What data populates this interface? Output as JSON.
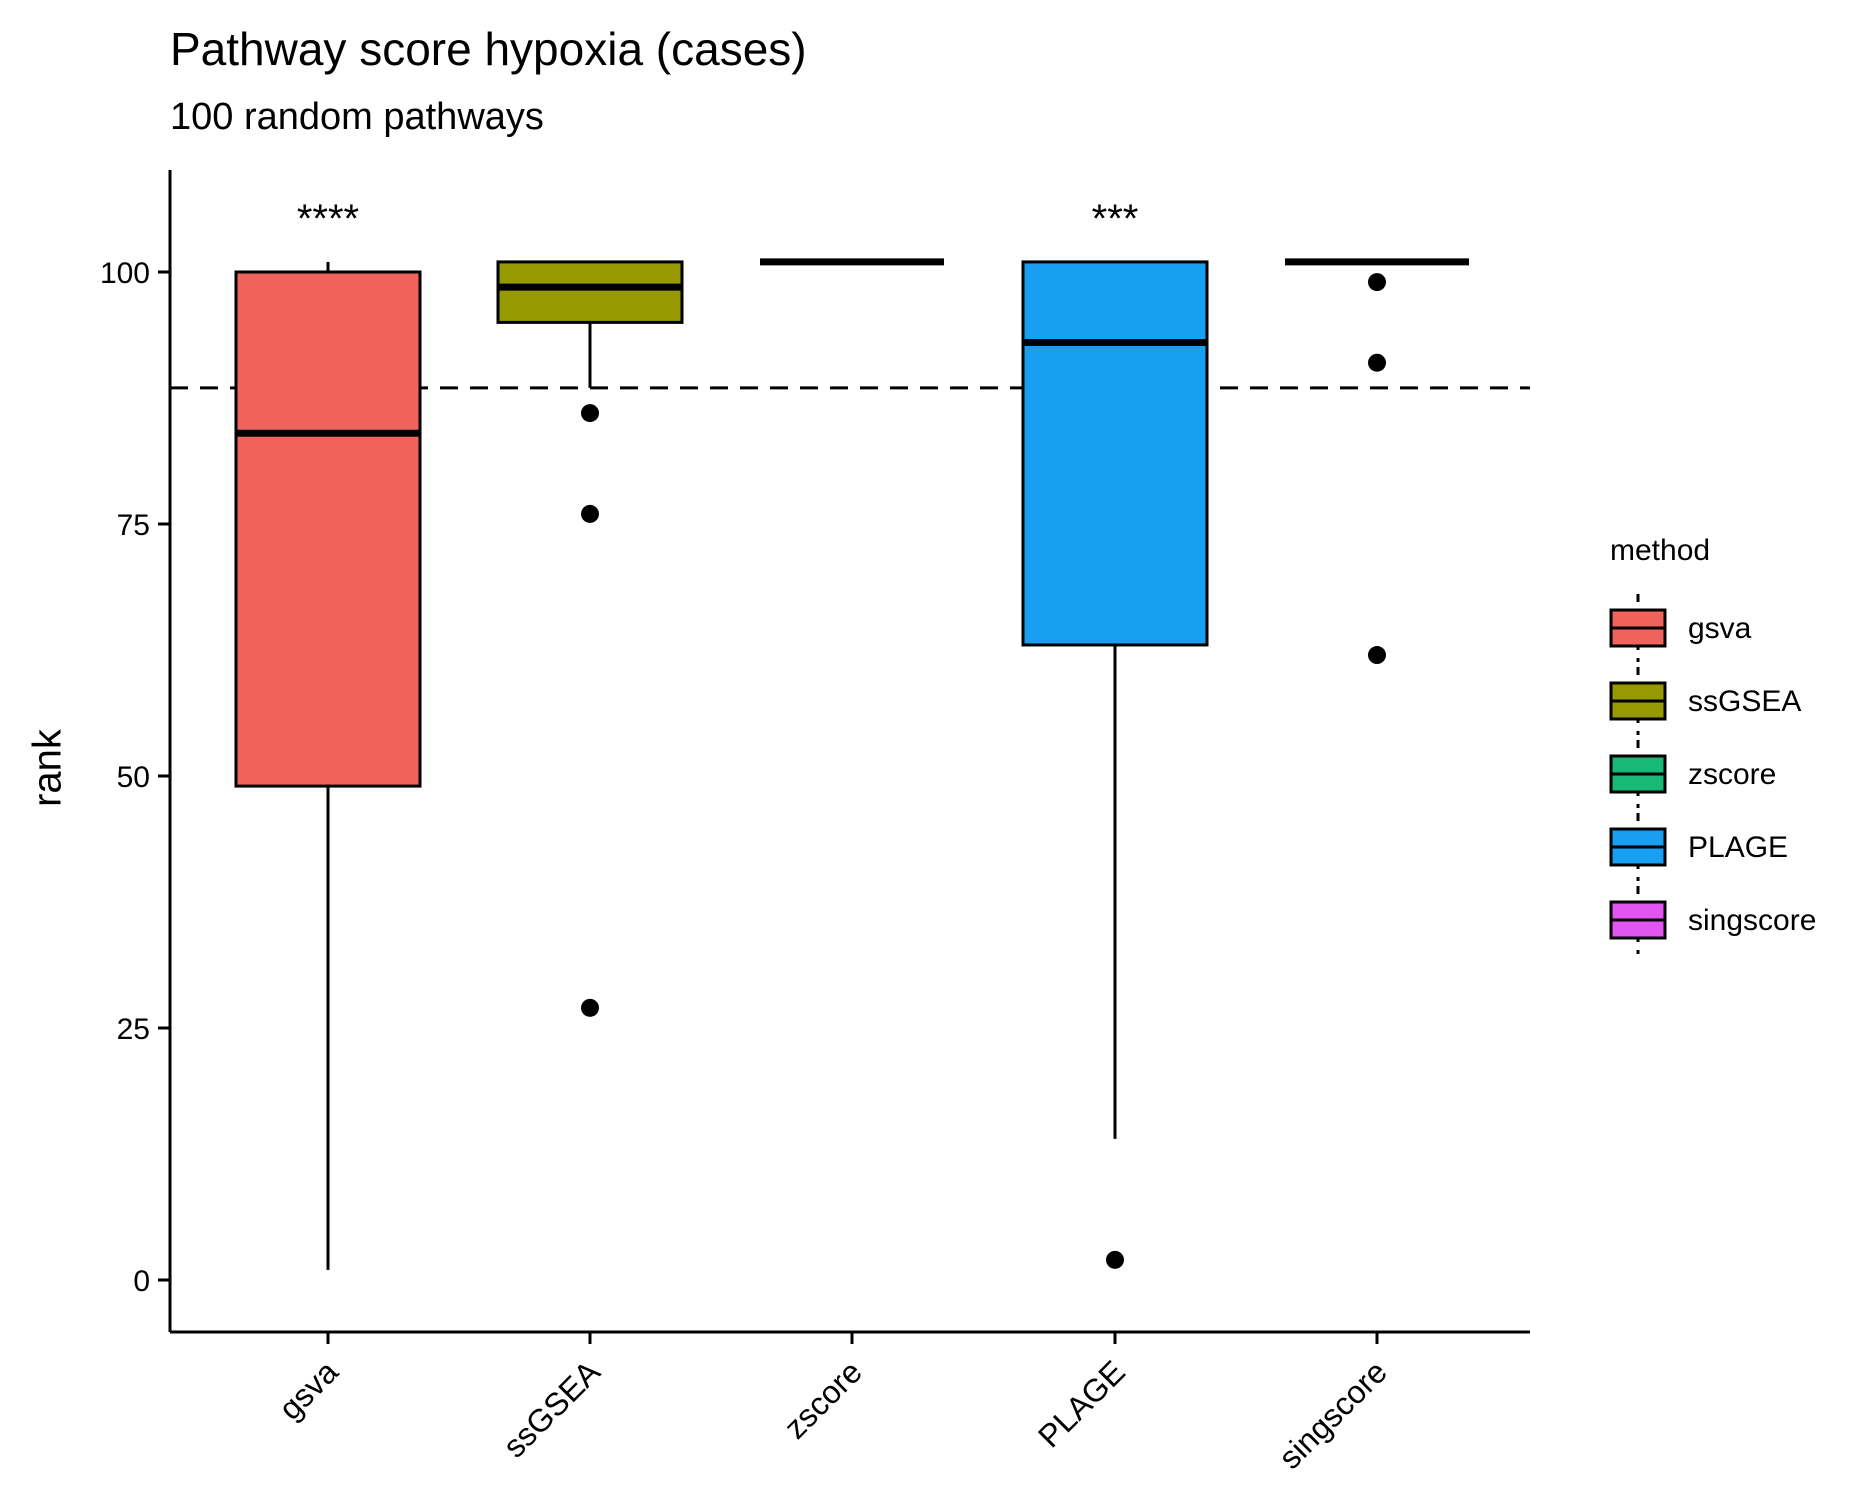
{
  "chart_data": {
    "type": "box",
    "title": "Pathway score hypoxia (cases)",
    "subtitle": "100 random pathways",
    "xlabel": "",
    "ylabel": "rank",
    "ylim": [
      -5,
      110
    ],
    "yticks": [
      0,
      25,
      50,
      75,
      100
    ],
    "reference_line": {
      "y": 88.5,
      "style": "dashed"
    },
    "legend": {
      "title": "method",
      "placement": "right"
    },
    "categories": [
      "gsva",
      "ssGSEA",
      "zscore",
      "PLAGE",
      "singscore"
    ],
    "series": [
      {
        "name": "gsva",
        "color": "#F0625C",
        "q1": 49,
        "median": 84,
        "q3": 100,
        "whisker_low": 1,
        "whisker_high": 101,
        "outliers": [],
        "significance": "****"
      },
      {
        "name": "ssGSEA",
        "color": "#969A00",
        "q1": 95,
        "median": 98.5,
        "q3": 101,
        "whisker_low": 88.5,
        "whisker_high": 101,
        "outliers": [
          86,
          76,
          27
        ],
        "significance": ""
      },
      {
        "name": "zscore",
        "color": "#18B877",
        "q1": 101,
        "median": 101,
        "q3": 101,
        "whisker_low": 101,
        "whisker_high": 101,
        "outliers": [],
        "significance": ""
      },
      {
        "name": "PLAGE",
        "color": "#189FF2",
        "q1": 63,
        "median": 93,
        "q3": 101,
        "whisker_low": 14,
        "whisker_high": 101,
        "outliers": [
          2
        ],
        "significance": "***"
      },
      {
        "name": "singscore",
        "color": "#E055F0",
        "q1": 101,
        "median": 101,
        "q3": 101,
        "whisker_low": 101,
        "whisker_high": 101,
        "outliers": [
          99,
          91,
          62
        ],
        "significance": ""
      }
    ]
  }
}
